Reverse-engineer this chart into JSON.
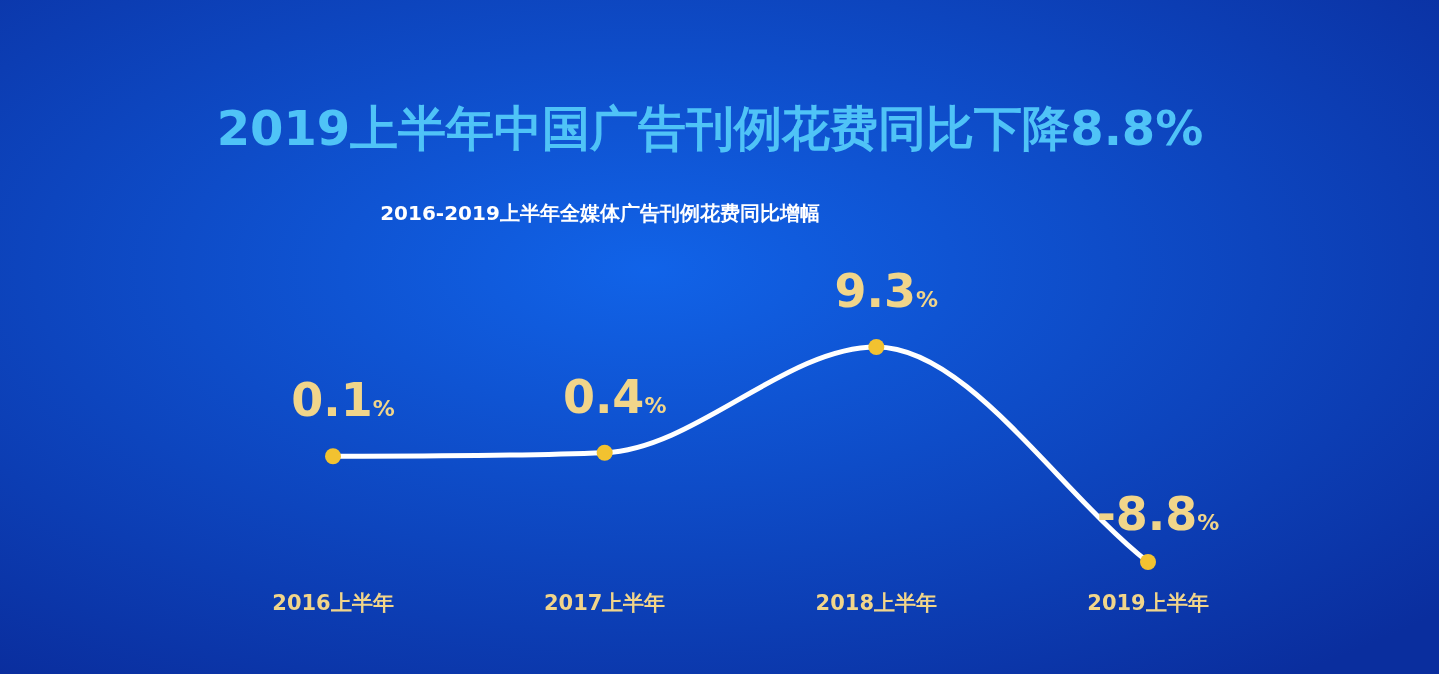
{
  "chart_data": {
    "type": "line",
    "title": "2019上半年中国广告刊例花费同比下降8.8%",
    "subtitle": "2016-2019上半年全媒体广告刊例花费同比增幅",
    "categories": [
      "2016上半年",
      "2017上半年",
      "2018上半年",
      "2019上半年"
    ],
    "series": [
      {
        "color": "#ffffff",
        "values": [
          0.1,
          0.4,
          9.3,
          -8.8
        ],
        "value_labels": [
          "0.1%",
          "0.4%",
          "9.3%",
          "-8.8%"
        ]
      }
    ],
    "marker": "circle",
    "line_style": "solid",
    "tick_labels": "x"
  }
}
